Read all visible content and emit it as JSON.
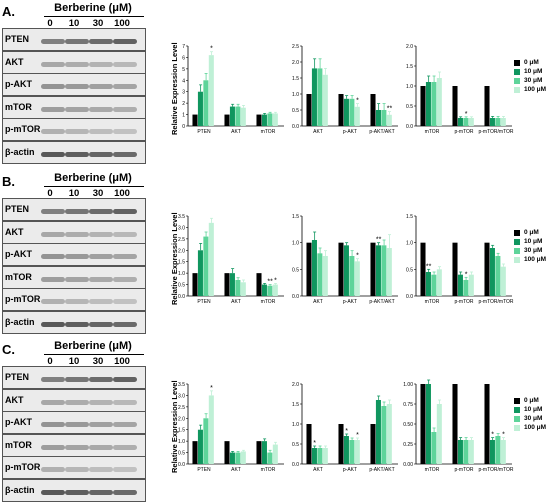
{
  "colors": {
    "c0": "#000000",
    "c10": "#10965f",
    "c30": "#5ed49a",
    "c100": "#bff0d6"
  },
  "legend": [
    "0 μM",
    "10 μM",
    "30 μM",
    "100 μM"
  ],
  "treatment_title": "Berberine (μM)",
  "doses": [
    "0",
    "10",
    "30",
    "100"
  ],
  "blot_labels": [
    "PTEN",
    "AKT",
    "p-AKT",
    "mTOR",
    "p-mTOR",
    "β-actin"
  ],
  "y_axis_title": "Relative Expression Level",
  "panels": [
    {
      "letter": "A."
    },
    {
      "letter": "B."
    },
    {
      "letter": "C."
    }
  ],
  "chart_data": [
    {
      "type": "bar",
      "panel": "A",
      "ylim": [
        0,
        7
      ],
      "yticks": [
        "0",
        "1",
        "2",
        "3",
        "4",
        "5",
        "6",
        "7"
      ],
      "categories": [
        "PTEN",
        "AKT",
        "mTOR"
      ],
      "series": [
        {
          "name": "0 μM",
          "values": [
            1,
            1,
            1
          ]
        },
        {
          "name": "10 μM",
          "values": [
            3,
            1.7,
            1
          ]
        },
        {
          "name": "30 μM",
          "values": [
            4,
            1.7,
            1.1
          ]
        },
        {
          "name": "100 μM",
          "values": [
            6.2,
            1.6,
            1.1
          ]
        }
      ],
      "errors": [
        [
          0,
          0,
          0
        ],
        [
          0.6,
          0.2,
          0.1
        ],
        [
          0.6,
          0.2,
          0.1
        ],
        [
          0.3,
          0.2,
          0.1
        ]
      ],
      "annotations": [
        {
          "text": "*",
          "category": "PTEN",
          "series": 3
        }
      ]
    },
    {
      "type": "bar",
      "panel": "A",
      "ylim": [
        0,
        2.5
      ],
      "yticks": [
        "0.0",
        "0.5",
        "1.0",
        "1.5",
        "2.0",
        "2.5"
      ],
      "categories": [
        "AKT",
        "p-AKT",
        "p-AKT/AKT"
      ],
      "series": [
        {
          "name": "0 μM",
          "values": [
            1,
            1,
            1
          ]
        },
        {
          "name": "10 μM",
          "values": [
            1.8,
            0.85,
            0.5
          ]
        },
        {
          "name": "30 μM",
          "values": [
            1.8,
            0.85,
            0.5
          ]
        },
        {
          "name": "100 μM",
          "values": [
            1.6,
            0.6,
            0.35
          ]
        }
      ],
      "errors": [
        [
          0,
          0,
          0
        ],
        [
          0.3,
          0.1,
          0.2
        ],
        [
          0.3,
          0.1,
          0.2
        ],
        [
          0.2,
          0.1,
          0.1
        ]
      ],
      "annotations": [
        {
          "text": "*",
          "category": "p-AKT",
          "series": 3
        },
        {
          "text": "**",
          "category": "p-AKT/AKT",
          "series": 3
        }
      ]
    },
    {
      "type": "bar",
      "panel": "A",
      "ylim": [
        0,
        2.0
      ],
      "yticks": [
        "0.0",
        "0.5",
        "1.0",
        "1.5",
        "2.0"
      ],
      "categories": [
        "mTOR",
        "p-mTOR",
        "p-mTOR/mTOR"
      ],
      "series": [
        {
          "name": "0 μM",
          "values": [
            1,
            1,
            1
          ]
        },
        {
          "name": "10 μM",
          "values": [
            1.1,
            0.2,
            0.2
          ]
        },
        {
          "name": "30 μM",
          "values": [
            1.1,
            0.2,
            0.2
          ]
        },
        {
          "name": "100 μM",
          "values": [
            1.2,
            0.2,
            0.2
          ]
        }
      ],
      "errors": [
        [
          0,
          0,
          0
        ],
        [
          0.15,
          0.03,
          0.04
        ],
        [
          0.15,
          0.03,
          0.04
        ],
        [
          0.15,
          0.03,
          0.04
        ]
      ],
      "annotations": [
        {
          "text": "*",
          "category": "p-mTOR",
          "series": 2
        }
      ]
    },
    {
      "type": "bar",
      "panel": "B",
      "ylim": [
        0,
        3.5
      ],
      "yticks": [
        "0.0",
        "0.5",
        "1.0",
        "1.5",
        "2.0",
        "2.5",
        "3.0",
        "3.5"
      ],
      "categories": [
        "PTEN",
        "AKT",
        "mTOR"
      ],
      "series": [
        {
          "name": "0 μM",
          "values": [
            1,
            1,
            1
          ]
        },
        {
          "name": "10 μM",
          "values": [
            2,
            1,
            0.5
          ]
        },
        {
          "name": "30 μM",
          "values": [
            2.6,
            0.7,
            0.45
          ]
        },
        {
          "name": "100 μM",
          "values": [
            3.2,
            0.6,
            0.5
          ]
        }
      ],
      "errors": [
        [
          0,
          0,
          0
        ],
        [
          0.3,
          0.2,
          0.05
        ],
        [
          0.2,
          0.1,
          0.05
        ],
        [
          0.2,
          0.1,
          0.05
        ]
      ],
      "annotations": [
        {
          "text": "**",
          "category": "mTOR",
          "series": 2
        },
        {
          "text": "*",
          "category": "mTOR",
          "series": 3
        }
      ]
    },
    {
      "type": "bar",
      "panel": "B",
      "ylim": [
        0,
        1.5
      ],
      "yticks": [
        "0.0",
        "0.5",
        "1.0",
        "1.5"
      ],
      "categories": [
        "AKT",
        "p-AKT",
        "p-AKT/AKT"
      ],
      "series": [
        {
          "name": "0 μM",
          "values": [
            1,
            1,
            1
          ]
        },
        {
          "name": "10 μM",
          "values": [
            1.05,
            0.95,
            0.95
          ]
        },
        {
          "name": "30 μM",
          "values": [
            0.8,
            0.75,
            0.95
          ]
        },
        {
          "name": "100 μM",
          "values": [
            0.75,
            0.65,
            0.9
          ]
        }
      ],
      "errors": [
        [
          0,
          0,
          0
        ],
        [
          0.15,
          0.05,
          0.05
        ],
        [
          0.1,
          0.1,
          0.1
        ],
        [
          0.1,
          0.05,
          0.25
        ]
      ],
      "annotations": [
        {
          "text": "*",
          "category": "p-AKT",
          "series": 3
        },
        {
          "text": "**",
          "category": "p-AKT/AKT",
          "series": 1
        }
      ]
    },
    {
      "type": "bar",
      "panel": "B",
      "ylim": [
        0,
        1.5
      ],
      "yticks": [
        "0.0",
        "0.5",
        "1.0",
        "1.5"
      ],
      "categories": [
        "mTOR",
        "p-mTOR",
        "p-mTOR/mTOR"
      ],
      "series": [
        {
          "name": "0 μM",
          "values": [
            1,
            1,
            1
          ]
        },
        {
          "name": "10 μM",
          "values": [
            0.45,
            0.4,
            0.9
          ]
        },
        {
          "name": "30 μM",
          "values": [
            0.4,
            0.3,
            0.75
          ]
        },
        {
          "name": "100 μM",
          "values": [
            0.5,
            0.4,
            0.55
          ]
        }
      ],
      "errors": [
        [
          0,
          0,
          0
        ],
        [
          0.05,
          0.05,
          0.05
        ],
        [
          0.05,
          0.05,
          0.05
        ],
        [
          0.05,
          0.05,
          0.05
        ]
      ],
      "annotations": [
        {
          "text": "**",
          "category": "mTOR",
          "series": 1
        },
        {
          "text": "*",
          "category": "p-mTOR",
          "series": 2
        }
      ]
    },
    {
      "type": "bar",
      "panel": "C",
      "ylim": [
        0,
        3.5
      ],
      "yticks": [
        "0.0",
        "0.5",
        "1.0",
        "1.5",
        "2.0",
        "2.5",
        "3.0",
        "3.5"
      ],
      "categories": [
        "PTEN",
        "AKT",
        "mTOR"
      ],
      "series": [
        {
          "name": "0 μM",
          "values": [
            1,
            1,
            1
          ]
        },
        {
          "name": "10 μM",
          "values": [
            1.5,
            0.5,
            1
          ]
        },
        {
          "name": "30 μM",
          "values": [
            2,
            0.5,
            0.5
          ]
        },
        {
          "name": "100 μM",
          "values": [
            3,
            0.55,
            0.85
          ]
        }
      ],
      "errors": [
        [
          0,
          0,
          0
        ],
        [
          0.2,
          0.05,
          0.1
        ],
        [
          0.2,
          0.05,
          0.1
        ],
        [
          0.2,
          0.05,
          0.1
        ]
      ],
      "annotations": [
        {
          "text": "*",
          "category": "PTEN",
          "series": 3
        }
      ]
    },
    {
      "type": "bar",
      "panel": "C",
      "ylim": [
        0,
        2.0
      ],
      "yticks": [
        "0.0",
        "0.5",
        "1.0",
        "1.5",
        "2.0"
      ],
      "categories": [
        "AKT",
        "p-AKT",
        "p-AKT/AKT"
      ],
      "series": [
        {
          "name": "0 μM",
          "values": [
            1,
            1,
            1
          ]
        },
        {
          "name": "10 μM",
          "values": [
            0.4,
            0.7,
            1.6
          ]
        },
        {
          "name": "30 μM",
          "values": [
            0.4,
            0.6,
            1.45
          ]
        },
        {
          "name": "100 μM",
          "values": [
            0.4,
            0.6,
            1.5
          ]
        }
      ],
      "errors": [
        [
          0,
          0,
          0
        ],
        [
          0.05,
          0.05,
          0.1
        ],
        [
          0.05,
          0.05,
          0.1
        ],
        [
          0.05,
          0.05,
          0.1
        ]
      ],
      "annotations": [
        {
          "text": "*",
          "category": "AKT",
          "series": 1
        },
        {
          "text": "*",
          "category": "p-AKT",
          "series": 1
        },
        {
          "text": "*",
          "category": "p-AKT",
          "series": 3
        }
      ]
    },
    {
      "type": "bar",
      "panel": "C",
      "ylim": [
        0,
        1.0
      ],
      "yticks": [
        "0.00",
        "0.25",
        "0.50",
        "0.75",
        "1.00"
      ],
      "categories": [
        "mTOR",
        "p-mTOR",
        "p-mTOR/mTOR"
      ],
      "series": [
        {
          "name": "0 μM",
          "values": [
            1,
            1,
            1
          ]
        },
        {
          "name": "10 μM",
          "values": [
            1,
            0.3,
            0.3
          ]
        },
        {
          "name": "30 μM",
          "values": [
            0.4,
            0.3,
            0.35
          ]
        },
        {
          "name": "100 μM",
          "values": [
            0.75,
            0.3,
            0.3
          ]
        }
      ],
      "errors": [
        [
          0,
          0,
          0
        ],
        [
          0.05,
          0.03,
          0.03
        ],
        [
          0.05,
          0.03,
          0.03
        ],
        [
          0.05,
          0.03,
          0.03
        ]
      ],
      "annotations": [
        {
          "text": "*",
          "category": "p-mTOR/mTOR",
          "series": 1
        },
        {
          "text": "*",
          "category": "p-mTOR/mTOR",
          "series": 3
        }
      ]
    }
  ]
}
